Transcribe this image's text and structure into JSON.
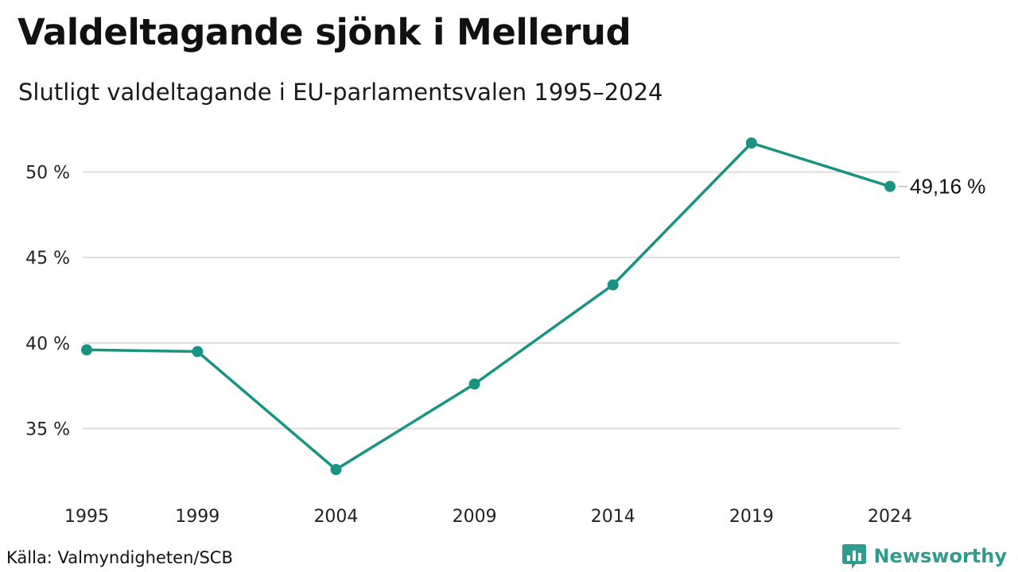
{
  "header": {
    "title": "Valdeltagande sjönk i Mellerud",
    "subtitle": "Slutligt valdeltagande i EU-parlamentsvalen 1995–2024"
  },
  "footer": {
    "source": "Källa: Valmyndigheten/SCB",
    "brand": "Newsworthy",
    "brand_icon": "bar-chart-logo-icon"
  },
  "colors": {
    "line": "#1a9383",
    "grid": "#dddddd",
    "brand": "#2f9c8f"
  },
  "chart_data": {
    "type": "line",
    "title": "Valdeltagande sjönk i Mellerud",
    "subtitle": "Slutligt valdeltagande i EU-parlamentsvalen 1995–2024",
    "xlabel": "",
    "ylabel": "",
    "x": [
      "1995",
      "1999",
      "2004",
      "2009",
      "2014",
      "2019",
      "2024"
    ],
    "series": [
      {
        "values": [
          39.6,
          39.5,
          32.6,
          37.6,
          43.4,
          51.7,
          49.16
        ]
      }
    ],
    "yticks": [
      35,
      40,
      45,
      50
    ],
    "ytick_labels": [
      "35 %",
      "40 %",
      "45 %",
      "50 %"
    ],
    "ylim": [
      32.6,
      51.7
    ],
    "grid": true,
    "legend": "none",
    "end_label": "49,16 %"
  }
}
